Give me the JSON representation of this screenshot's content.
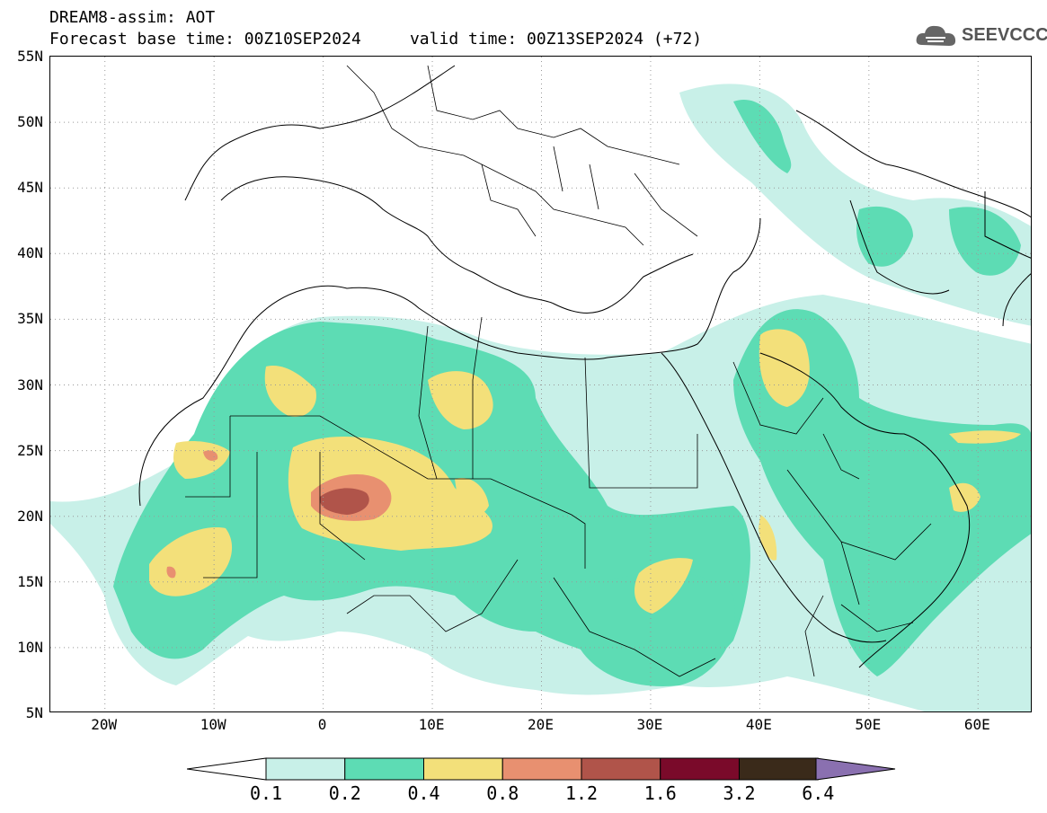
{
  "header": {
    "title": "DREAM8-assim: AOT",
    "subtitle": "Forecast base time: 00Z10SEP2024     valid time: 00Z13SEP2024 (+72)"
  },
  "logo": {
    "text": "SEEVCCC"
  },
  "map": {
    "lat_ticks": [
      "55N",
      "50N",
      "45N",
      "40N",
      "35N",
      "30N",
      "25N",
      "20N",
      "15N",
      "10N",
      "5N"
    ],
    "lon_ticks": [
      "20W",
      "10W",
      "0",
      "10E",
      "20E",
      "30E",
      "40E",
      "50E",
      "60E"
    ],
    "extent": {
      "lon_min": -25,
      "lon_max": 65,
      "lat_min": 5,
      "lat_max": 55
    },
    "gridlines": "dotted"
  },
  "colorbar": {
    "labels": [
      "0.1",
      "0.2",
      "0.4",
      "0.8",
      "1.2",
      "1.6",
      "3.2",
      "6.4"
    ],
    "colors": [
      "#c8f0e8",
      "#5ddcb4",
      "#f3e07a",
      "#e89070",
      "#b0544a",
      "#7a0a2a",
      "#3a2a1a",
      "#8a70b0"
    ]
  }
}
